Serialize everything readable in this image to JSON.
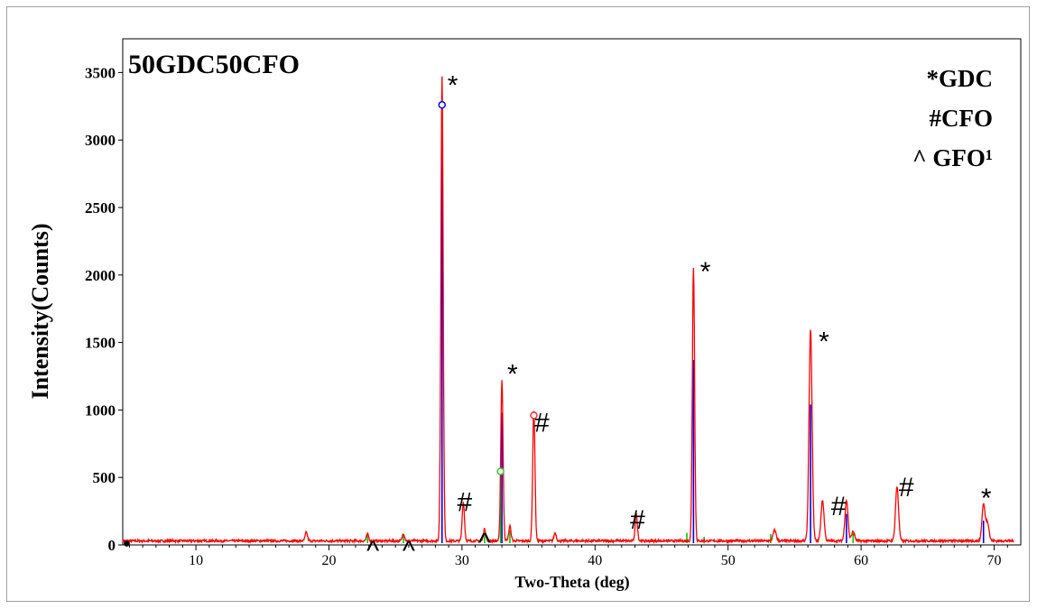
{
  "chart_data": {
    "type": "line",
    "title": "50GDC50CFO",
    "xlabel": "Two-Theta (deg)",
    "ylabel": "Intensity(Counts)",
    "xlim": [
      4.5,
      72
    ],
    "ylim": [
      0,
      3750
    ],
    "xticks": [
      "10",
      "20",
      "30",
      "40",
      "50",
      "60",
      "70"
    ],
    "yticks": [
      "0",
      "500",
      "1000",
      "1500",
      "2000",
      "2500",
      "3000",
      "3500"
    ],
    "grid": false,
    "legend": {
      "placement": "top-right",
      "entries": [
        "*GDC",
        "#CFO",
        "^ GFO¹"
      ]
    },
    "colors": {
      "measured": "#ff0000",
      "gdc_reference": "#0000ff",
      "gfo_reference": "#00cc00"
    },
    "background": 30,
    "series": [
      {
        "name": "",
        "role": "measured",
        "peaks": [
          {
            "x": 18.3,
            "y": 95
          },
          {
            "x": 22.9,
            "y": 80
          },
          {
            "x": 25.6,
            "y": 85
          },
          {
            "x": 28.5,
            "y": 3470
          },
          {
            "x": 30.1,
            "y": 320
          },
          {
            "x": 31.7,
            "y": 120
          },
          {
            "x": 33.0,
            "y": 1220
          },
          {
            "x": 33.6,
            "y": 140
          },
          {
            "x": 35.4,
            "y": 1000
          },
          {
            "x": 37.0,
            "y": 90
          },
          {
            "x": 43.1,
            "y": 230
          },
          {
            "x": 47.4,
            "y": 2060
          },
          {
            "x": 53.5,
            "y": 110
          },
          {
            "x": 56.2,
            "y": 1590
          },
          {
            "x": 57.1,
            "y": 330
          },
          {
            "x": 58.9,
            "y": 330
          },
          {
            "x": 59.4,
            "y": 100
          },
          {
            "x": 62.7,
            "y": 430
          },
          {
            "x": 69.2,
            "y": 300
          },
          {
            "x": 69.5,
            "y": 170
          }
        ]
      },
      {
        "name": "",
        "role": "gdc_reference",
        "sticks": [
          {
            "x": 28.5,
            "y": 3260
          },
          {
            "x": 33.0,
            "y": 980
          },
          {
            "x": 47.4,
            "y": 1370
          },
          {
            "x": 56.2,
            "y": 1040
          },
          {
            "x": 58.9,
            "y": 230
          },
          {
            "x": 69.2,
            "y": 180
          }
        ]
      },
      {
        "name": "",
        "role": "gfo_reference",
        "sticks": [
          {
            "x": 22.9,
            "y": 75
          },
          {
            "x": 25.6,
            "y": 80
          },
          {
            "x": 31.7,
            "y": 90
          },
          {
            "x": 32.9,
            "y": 540
          },
          {
            "x": 33.6,
            "y": 110
          },
          {
            "x": 41.0,
            "y": 40
          },
          {
            "x": 46.9,
            "y": 90
          },
          {
            "x": 48.2,
            "y": 60
          },
          {
            "x": 53.2,
            "y": 80
          },
          {
            "x": 59.4,
            "y": 90
          }
        ]
      }
    ],
    "annotations": [
      {
        "text": "*",
        "x": 29.3,
        "y": 3420
      },
      {
        "text": "*",
        "x": 33.8,
        "y": 1280
      },
      {
        "text": "*",
        "x": 48.3,
        "y": 2040
      },
      {
        "text": "*",
        "x": 57.2,
        "y": 1520
      },
      {
        "text": "*",
        "x": 69.4,
        "y": 360
      },
      {
        "text": "#",
        "x": 30.2,
        "y": 330
      },
      {
        "text": "#",
        "x": 36.0,
        "y": 920
      },
      {
        "text": "#",
        "x": 43.2,
        "y": 200
      },
      {
        "text": "#",
        "x": 58.3,
        "y": 300
      },
      {
        "text": "#",
        "x": 63.4,
        "y": 440
      },
      {
        "text": "^",
        "x": 23.3,
        "y": -30
      },
      {
        "text": "^",
        "x": 26.0,
        "y": -30
      },
      {
        "text": "^",
        "x": 31.7,
        "y": 30
      }
    ],
    "markers": [
      {
        "x": 28.5,
        "y": 3260,
        "color": "#0000ff"
      },
      {
        "x": 35.4,
        "y": 960,
        "color": "#ff3333"
      },
      {
        "x": 32.9,
        "y": 545,
        "color": "#33cc33"
      },
      {
        "x": 4.8,
        "y": 10,
        "color": "#000000"
      }
    ]
  }
}
